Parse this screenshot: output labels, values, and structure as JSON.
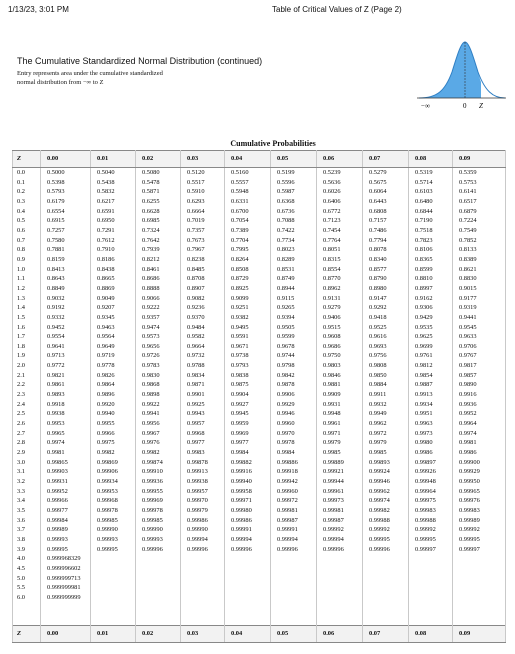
{
  "header": {
    "datetime": "1/13/23, 3:01 PM",
    "page_title": "Table of Critical Values of Z (Page 2)"
  },
  "title": "The Cumulative Standardized Normal Distribution (continued)",
  "description": [
    "Entry represents area under the cumulative standardized",
    "normal distribution from −∞ to Z"
  ],
  "figure": {
    "neg_inf": "−∞",
    "zero": "0",
    "z": "Z"
  },
  "table": {
    "caption": "Cumulative Probabilities",
    "columns": [
      "Z",
      "0.00",
      "0.01",
      "0.02",
      "0.03",
      "0.04",
      "0.05",
      "0.06",
      "0.07",
      "0.08",
      "0.09"
    ],
    "rows": [
      [
        "0.0",
        "0.5000",
        "0.5040",
        "0.5080",
        "0.5120",
        "0.5160",
        "0.5199",
        "0.5239",
        "0.5279",
        "0.5319",
        "0.5359"
      ],
      [
        "0.1",
        "0.5398",
        "0.5438",
        "0.5478",
        "0.5517",
        "0.5557",
        "0.5596",
        "0.5636",
        "0.5675",
        "0.5714",
        "0.5753"
      ],
      [
        "0.2",
        "0.5793",
        "0.5832",
        "0.5871",
        "0.5910",
        "0.5948",
        "0.5987",
        "0.6026",
        "0.6064",
        "0.6103",
        "0.6141"
      ],
      [
        "0.3",
        "0.6179",
        "0.6217",
        "0.6255",
        "0.6293",
        "0.6331",
        "0.6368",
        "0.6406",
        "0.6443",
        "0.6480",
        "0.6517"
      ],
      [
        "0.4",
        "0.6554",
        "0.6591",
        "0.6628",
        "0.6664",
        "0.6700",
        "0.6736",
        "0.6772",
        "0.6808",
        "0.6844",
        "0.6879"
      ],
      [
        "0.5",
        "0.6915",
        "0.6950",
        "0.6985",
        "0.7019",
        "0.7054",
        "0.7088",
        "0.7123",
        "0.7157",
        "0.7190",
        "0.7224"
      ],
      [
        "0.6",
        "0.7257",
        "0.7291",
        "0.7324",
        "0.7357",
        "0.7389",
        "0.7422",
        "0.7454",
        "0.7486",
        "0.7518",
        "0.7549"
      ],
      [
        "0.7",
        "0.7580",
        "0.7612",
        "0.7642",
        "0.7673",
        "0.7704",
        "0.7734",
        "0.7764",
        "0.7794",
        "0.7823",
        "0.7852"
      ],
      [
        "0.8",
        "0.7881",
        "0.7910",
        "0.7939",
        "0.7967",
        "0.7995",
        "0.8023",
        "0.8051",
        "0.8078",
        "0.8106",
        "0.8133"
      ],
      [
        "0.9",
        "0.8159",
        "0.8186",
        "0.8212",
        "0.8238",
        "0.8264",
        "0.8289",
        "0.8315",
        "0.8340",
        "0.8365",
        "0.8389"
      ],
      [
        "1.0",
        "0.8413",
        "0.8438",
        "0.8461",
        "0.8485",
        "0.8508",
        "0.8531",
        "0.8554",
        "0.8577",
        "0.8599",
        "0.8621"
      ],
      [
        "1.1",
        "0.8643",
        "0.8665",
        "0.8686",
        "0.8708",
        "0.8729",
        "0.8749",
        "0.8770",
        "0.8790",
        "0.8810",
        "0.8830"
      ],
      [
        "1.2",
        "0.8849",
        "0.8869",
        "0.8888",
        "0.8907",
        "0.8925",
        "0.8944",
        "0.8962",
        "0.8980",
        "0.8997",
        "0.9015"
      ],
      [
        "1.3",
        "0.9032",
        "0.9049",
        "0.9066",
        "0.9082",
        "0.9099",
        "0.9115",
        "0.9131",
        "0.9147",
        "0.9162",
        "0.9177"
      ],
      [
        "1.4",
        "0.9192",
        "0.9207",
        "0.9222",
        "0.9236",
        "0.9251",
        "0.9265",
        "0.9279",
        "0.9292",
        "0.9306",
        "0.9319"
      ],
      [
        "1.5",
        "0.9332",
        "0.9345",
        "0.9357",
        "0.9370",
        "0.9382",
        "0.9394",
        "0.9406",
        "0.9418",
        "0.9429",
        "0.9441"
      ],
      [
        "1.6",
        "0.9452",
        "0.9463",
        "0.9474",
        "0.9484",
        "0.9495",
        "0.9505",
        "0.9515",
        "0.9525",
        "0.9535",
        "0.9545"
      ],
      [
        "1.7",
        "0.9554",
        "0.9564",
        "0.9573",
        "0.9582",
        "0.9591",
        "0.9599",
        "0.9608",
        "0.9616",
        "0.9625",
        "0.9633"
      ],
      [
        "1.8",
        "0.9641",
        "0.9649",
        "0.9656",
        "0.9664",
        "0.9671",
        "0.9678",
        "0.9686",
        "0.9693",
        "0.9699",
        "0.9706"
      ],
      [
        "1.9",
        "0.9713",
        "0.9719",
        "0.9726",
        "0.9732",
        "0.9738",
        "0.9744",
        "0.9750",
        "0.9756",
        "0.9761",
        "0.9767"
      ],
      [
        "2.0",
        "0.9772",
        "0.9778",
        "0.9783",
        "0.9788",
        "0.9793",
        "0.9798",
        "0.9803",
        "0.9808",
        "0.9812",
        "0.9817"
      ],
      [
        "2.1",
        "0.9821",
        "0.9826",
        "0.9830",
        "0.9834",
        "0.9838",
        "0.9842",
        "0.9846",
        "0.9850",
        "0.9854",
        "0.9857"
      ],
      [
        "2.2",
        "0.9861",
        "0.9864",
        "0.9868",
        "0.9871",
        "0.9875",
        "0.9878",
        "0.9881",
        "0.9884",
        "0.9887",
        "0.9890"
      ],
      [
        "2.3",
        "0.9893",
        "0.9896",
        "0.9898",
        "0.9901",
        "0.9904",
        "0.9906",
        "0.9909",
        "0.9911",
        "0.9913",
        "0.9916"
      ],
      [
        "2.4",
        "0.9918",
        "0.9920",
        "0.9922",
        "0.9925",
        "0.9927",
        "0.9929",
        "0.9931",
        "0.9932",
        "0.9934",
        "0.9936"
      ],
      [
        "2.5",
        "0.9938",
        "0.9940",
        "0.9941",
        "0.9943",
        "0.9945",
        "0.9946",
        "0.9948",
        "0.9949",
        "0.9951",
        "0.9952"
      ],
      [
        "2.6",
        "0.9953",
        "0.9955",
        "0.9956",
        "0.9957",
        "0.9959",
        "0.9960",
        "0.9961",
        "0.9962",
        "0.9963",
        "0.9964"
      ],
      [
        "2.7",
        "0.9965",
        "0.9966",
        "0.9967",
        "0.9968",
        "0.9969",
        "0.9970",
        "0.9971",
        "0.9972",
        "0.9973",
        "0.9974"
      ],
      [
        "2.8",
        "0.9974",
        "0.9975",
        "0.9976",
        "0.9977",
        "0.9977",
        "0.9978",
        "0.9979",
        "0.9979",
        "0.9980",
        "0.9981"
      ],
      [
        "2.9",
        "0.9981",
        "0.9982",
        "0.9982",
        "0.9983",
        "0.9984",
        "0.9984",
        "0.9985",
        "0.9985",
        "0.9986",
        "0.9986"
      ],
      [
        "3.0",
        "0.99865",
        "0.99869",
        "0.99874",
        "0.99878",
        "0.99882",
        "0.99886",
        "0.99889",
        "0.99893",
        "0.99897",
        "0.99900"
      ],
      [
        "3.1",
        "0.99903",
        "0.99906",
        "0.99910",
        "0.99913",
        "0.99916",
        "0.99918",
        "0.99921",
        "0.99924",
        "0.99926",
        "0.99929"
      ],
      [
        "3.2",
        "0.99931",
        "0.99934",
        "0.99936",
        "0.99938",
        "0.99940",
        "0.99942",
        "0.99944",
        "0.99946",
        "0.99948",
        "0.99950"
      ],
      [
        "3.3",
        "0.99952",
        "0.99953",
        "0.99955",
        "0.99957",
        "0.99958",
        "0.99960",
        "0.99961",
        "0.99962",
        "0.99964",
        "0.99965"
      ],
      [
        "3.4",
        "0.99966",
        "0.99968",
        "0.99969",
        "0.99970",
        "0.99971",
        "0.99972",
        "0.99973",
        "0.99974",
        "0.99975",
        "0.99976"
      ],
      [
        "3.5",
        "0.99977",
        "0.99978",
        "0.99978",
        "0.99979",
        "0.99980",
        "0.99981",
        "0.99981",
        "0.99982",
        "0.99983",
        "0.99983"
      ],
      [
        "3.6",
        "0.99984",
        "0.99985",
        "0.99985",
        "0.99986",
        "0.99986",
        "0.99987",
        "0.99987",
        "0.99988",
        "0.99988",
        "0.99989"
      ],
      [
        "3.7",
        "0.99989",
        "0.99990",
        "0.99990",
        "0.99990",
        "0.99991",
        "0.99991",
        "0.99992",
        "0.99992",
        "0.99992",
        "0.99992"
      ],
      [
        "3.8",
        "0.99993",
        "0.99993",
        "0.99993",
        "0.99994",
        "0.99994",
        "0.99994",
        "0.99994",
        "0.99995",
        "0.99995",
        "0.99995"
      ],
      [
        "3.9",
        "0.99995",
        "0.99995",
        "0.99996",
        "0.99996",
        "0.99996",
        "0.99996",
        "0.99996",
        "0.99996",
        "0.99997",
        "0.99997"
      ],
      [
        "4.0",
        "0.999968329"
      ],
      [
        "4.5",
        "0.999996602"
      ],
      [
        "5.0",
        "0.999999713"
      ],
      [
        "5.5",
        "0.999999981"
      ],
      [
        "6.0",
        "0.999999999"
      ]
    ],
    "footer_columns": [
      "Z",
      "0.00",
      "0.01",
      "0.02",
      "0.03",
      "0.04",
      "0.05",
      "0.06",
      "0.07",
      "0.08",
      "0.09"
    ]
  }
}
